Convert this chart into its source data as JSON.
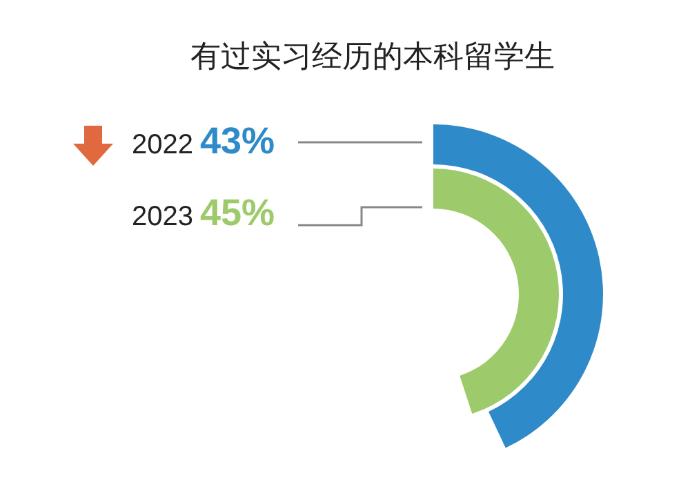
{
  "chart_data": {
    "type": "other",
    "title": "有过实习经历的本科留学生",
    "categories": [
      "2022",
      "2023"
    ],
    "values": [
      43,
      45
    ],
    "value_labels": [
      "43%",
      "45%"
    ],
    "colors": [
      "#2e8ac9",
      "#9dca6a"
    ]
  }
}
